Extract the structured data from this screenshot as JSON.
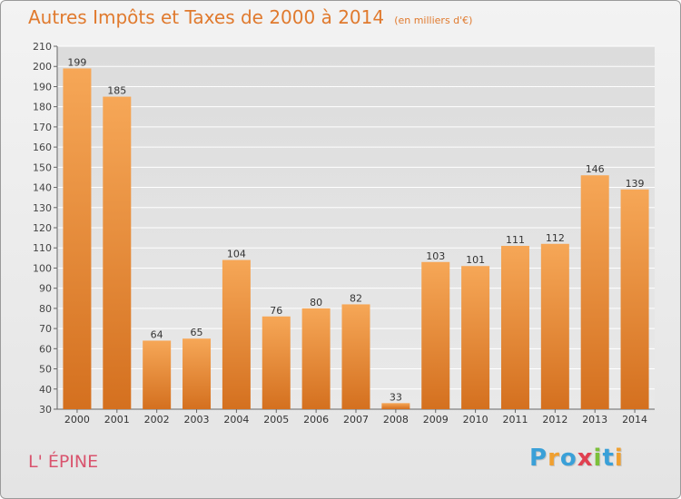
{
  "chart_data": {
    "type": "bar",
    "title": "Autres Impôts et Taxes de 2000 à 2014",
    "subtitle": "(en milliers d'€)",
    "categories": [
      "2000",
      "2001",
      "2002",
      "2003",
      "2004",
      "2005",
      "2006",
      "2007",
      "2008",
      "2009",
      "2010",
      "2011",
      "2012",
      "2013",
      "2014"
    ],
    "values": [
      199,
      185,
      64,
      65,
      104,
      76,
      80,
      82,
      33,
      103,
      101,
      111,
      112,
      146,
      139
    ],
    "ylim": [
      30,
      210
    ],
    "yticks": [
      30,
      40,
      50,
      60,
      70,
      80,
      90,
      100,
      110,
      120,
      130,
      140,
      150,
      160,
      170,
      180,
      190,
      200,
      210
    ],
    "grid": true,
    "bar_color_top": "#f6a757",
    "bar_color_bottom": "#d4701f",
    "xlabel": "",
    "ylabel": ""
  },
  "location_label": "L' ÉPINE",
  "logo": {
    "text": "Proxiti",
    "letters": [
      "P",
      "r",
      "o",
      "x",
      "i",
      "t",
      "i"
    ],
    "colors": [
      "#3aa0d8",
      "#f0a030",
      "#3aa0d8",
      "#e04050",
      "#7cc03a",
      "#3aa0d8",
      "#f0a030"
    ]
  },
  "colors": {
    "title": "#e07a2e",
    "location": "#d9546e",
    "axis": "#666666",
    "grid": "#ffffff"
  }
}
